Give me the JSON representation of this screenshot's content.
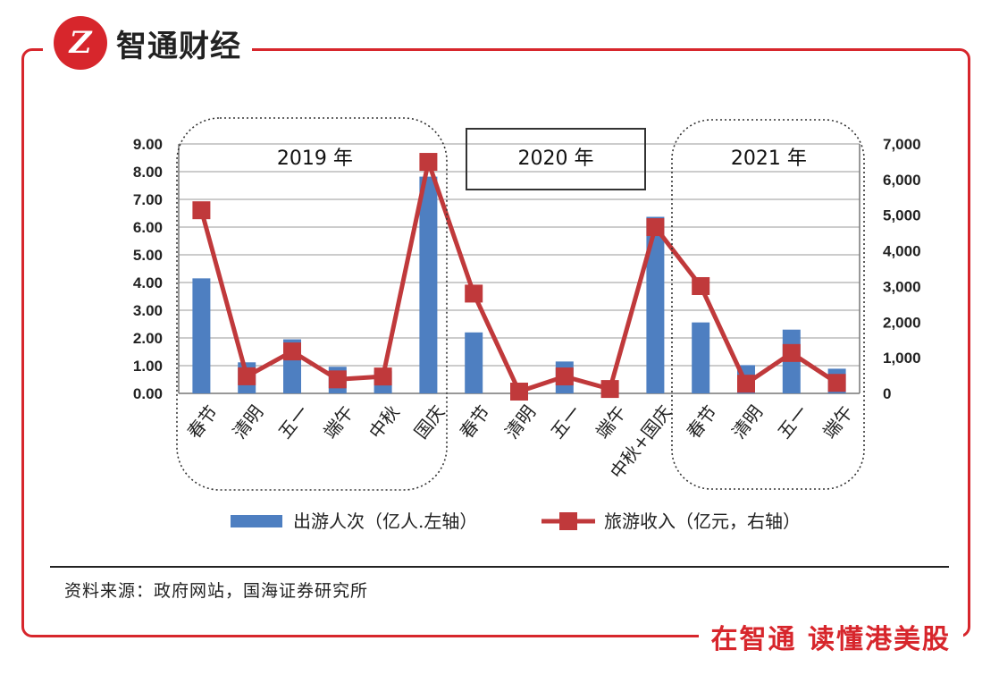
{
  "header": {
    "logo_glyph": "Z",
    "brand": "智通财经"
  },
  "footer": {
    "slogan": "在智通  读懂港美股",
    "source": "资料来源：政府网站，国海证券研究所"
  },
  "colors": {
    "accent": "#d7262c",
    "bar": "#4e7fc1",
    "line": "#c0393b"
  },
  "chart_data": {
    "type": "bar+line",
    "categories": [
      "春节",
      "清明",
      "五一",
      "端午",
      "中秋",
      "国庆",
      "春节",
      "清明",
      "五一",
      "端午",
      "中秋+国庆",
      "春节",
      "清明",
      "五一",
      "端午"
    ],
    "periods": [
      {
        "label": "2019 年",
        "from": 0,
        "to": 5,
        "style": "dotted"
      },
      {
        "label": "2020 年",
        "from": 6,
        "to": 10,
        "style": "solid"
      },
      {
        "label": "2021 年",
        "from": 11,
        "to": 14,
        "style": "dotted"
      }
    ],
    "series": [
      {
        "name": "出游人次（亿人.左轴）",
        "type": "bar",
        "axis": "left",
        "values": [
          4.15,
          1.12,
          1.95,
          0.96,
          0.8,
          7.82,
          2.2,
          0.05,
          1.15,
          0.05,
          6.37,
          2.56,
          1.02,
          2.3,
          0.89
        ]
      },
      {
        "name": "旅游收入（亿元，右轴）",
        "type": "line",
        "axis": "right",
        "values": [
          5139,
          479,
          1177,
          393,
          473,
          6497,
          2800,
          50,
          475,
          123,
          4665,
          3011,
          272,
          1133,
          295
        ]
      }
    ],
    "left_axis": {
      "min": 0,
      "max": 9,
      "step": 1,
      "tick_labels": [
        "0.00",
        "1.00",
        "2.00",
        "3.00",
        "4.00",
        "5.00",
        "6.00",
        "7.00",
        "8.00",
        "9.00"
      ]
    },
    "right_axis": {
      "min": 0,
      "max": 7000,
      "step": 1000,
      "tick_labels": [
        "0",
        "1,000",
        "2,000",
        "3,000",
        "4,000",
        "5,000",
        "6,000",
        "7,000"
      ]
    },
    "gridlines": true,
    "legend_position": "bottom"
  }
}
